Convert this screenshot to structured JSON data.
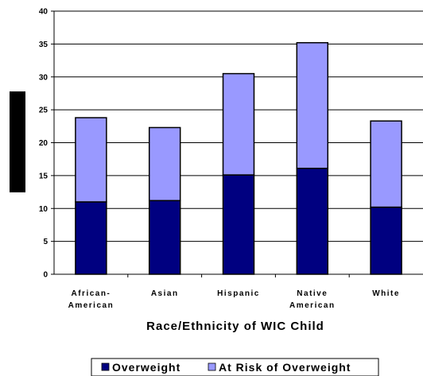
{
  "chart_data": {
    "type": "bar",
    "stacked": true,
    "categories": [
      [
        "African-",
        "American"
      ],
      [
        "Asian"
      ],
      [
        "Hispanic"
      ],
      [
        "Native",
        "American"
      ],
      [
        "White"
      ]
    ],
    "series": [
      {
        "name": "Overweight",
        "color": "#000080",
        "values": [
          11.0,
          11.2,
          15.1,
          16.1,
          10.2
        ]
      },
      {
        "name": "At Risk of Overweight",
        "color": "#9999FF",
        "values": [
          12.8,
          11.1,
          15.4,
          19.1,
          13.1
        ]
      }
    ],
    "xlabel": "Race/Ethnicity of WIC Child",
    "ylabel": "",
    "ylim": [
      0,
      40
    ],
    "yticks": [
      0,
      5,
      10,
      15,
      20,
      25,
      30,
      35,
      40
    ],
    "grid": true,
    "legend_position": "bottom"
  }
}
